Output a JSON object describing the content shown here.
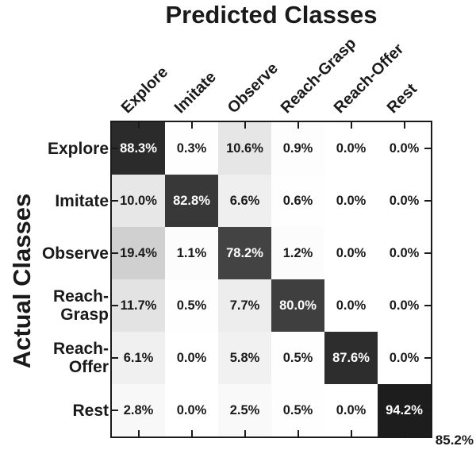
{
  "title": "Predicted Classes",
  "ylabel": "Actual Classes",
  "overall_accuracy": "85.2%",
  "colors": {
    "background": "#ffffff",
    "border": "#1a1a1a",
    "tick": "#1a1a1a",
    "cell_text_dark": "#1a1a1a",
    "cell_text_light": "#ffffff",
    "colormap_low": "#ffffff",
    "colormap_high": "#1d1d1d"
  },
  "chart_data": {
    "type": "heatmap",
    "subtype": "confusion-matrix",
    "title": "Predicted Classes",
    "xlabel": "Predicted Classes",
    "ylabel": "Actual Classes",
    "categories": [
      "Explore",
      "Imitate",
      "Observe",
      "Reach-Grasp",
      "Reach-Offer",
      "Rest"
    ],
    "row_label_lines": [
      "Explore",
      "Imitate",
      "Observe",
      "Reach-\nGrasp",
      "Reach-\nOffer",
      "Rest"
    ],
    "values": [
      [
        88.3,
        0.3,
        10.6,
        0.9,
        0.0,
        0.0
      ],
      [
        10.0,
        82.8,
        6.6,
        0.6,
        0.0,
        0.0
      ],
      [
        19.4,
        1.1,
        78.2,
        1.2,
        0.0,
        0.0
      ],
      [
        11.7,
        0.5,
        7.7,
        80.0,
        0.0,
        0.0
      ],
      [
        6.1,
        0.0,
        5.8,
        0.5,
        87.6,
        0.0
      ],
      [
        2.8,
        0.0,
        2.5,
        0.5,
        0.0,
        94.2
      ]
    ],
    "value_format": "percent_one_decimal",
    "value_range": [
      0,
      100
    ],
    "colormap": "linear white (0%) to near-black (100%)",
    "legend": "none",
    "grid": "off",
    "ticks": "inward ticks at each row/column center on all four axis sides",
    "overall_accuracy": "85.2%"
  }
}
